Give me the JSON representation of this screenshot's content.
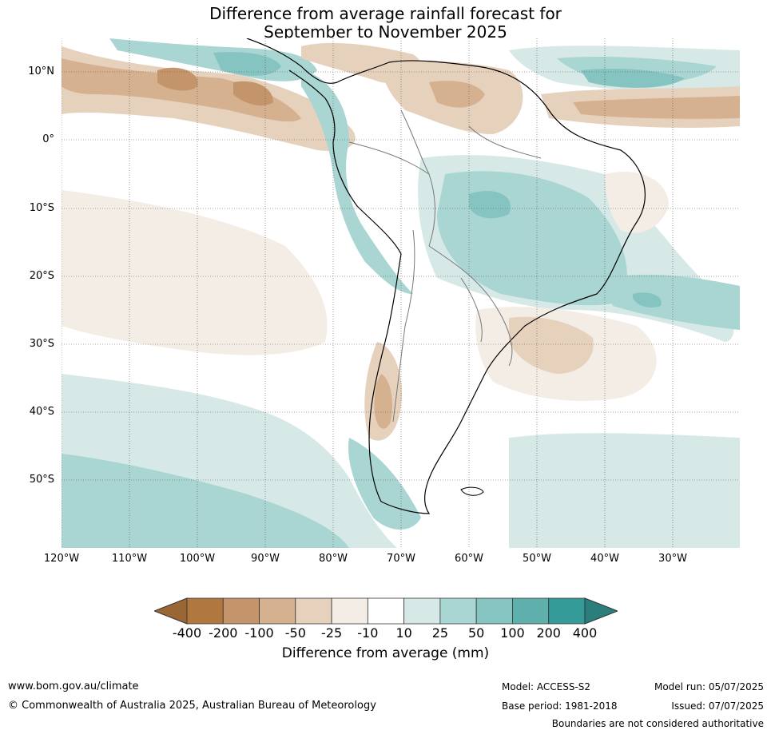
{
  "title": {
    "line1": "Difference from average rainfall forecast for",
    "line2": "September to November 2025"
  },
  "map": {
    "lat_labels": [
      "10°N",
      "0°",
      "10°S",
      "20°S",
      "30°S",
      "40°S",
      "50°S"
    ],
    "lon_labels": [
      "120°W",
      "110°W",
      "100°W",
      "90°W",
      "80°W",
      "70°W",
      "60°W",
      "50°W",
      "40°W",
      "30°W"
    ]
  },
  "colorbar": {
    "title": "Difference from average (mm)",
    "ticks": [
      "-400",
      "-200",
      "-100",
      "-50",
      "-25",
      "-10",
      "10",
      "25",
      "50",
      "100",
      "200",
      "400"
    ],
    "colors": [
      "#b0783f",
      "#c4956a",
      "#d5b190",
      "#e6d1bd",
      "#f3ede6",
      "#ffffff",
      "#d6e9e7",
      "#a9d5d3",
      "#86c4c2",
      "#5fafad",
      "#359b98"
    ],
    "under_color": "#9a6633",
    "over_color": "#2a7f7d"
  },
  "footer": {
    "website": "www.bom.gov.au/climate",
    "copyright": "© Commonwealth of Australia 2025, Australian Bureau of Meteorology",
    "model": "Model: ACCESS-S2",
    "base_period": "Base period: 1981-2018",
    "model_run": "Model run: 05/07/2025",
    "issued": "Issued: 07/07/2025",
    "disclaimer": "Boundaries are not considered authoritative"
  }
}
